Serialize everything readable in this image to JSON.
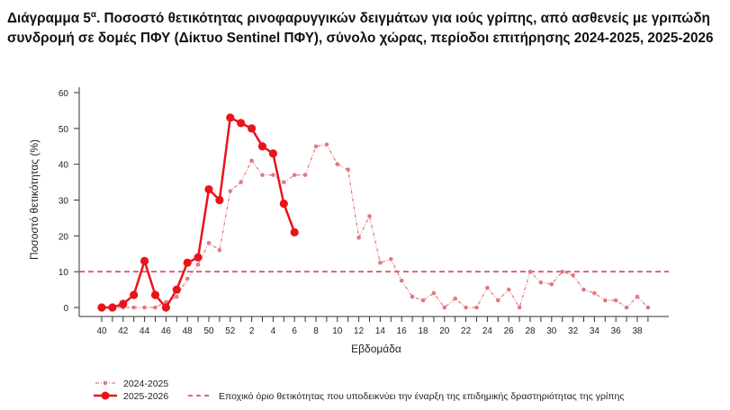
{
  "title": {
    "prefix": "Διάγραμμα 5",
    "sup": "α",
    "text": ". Ποσοστό θετικότητας ρινοφαρυγγικών δειγμάτων για ιούς γρίπης, από ασθενείς με γριπώδη συνδρομή σε δομές ΠΦΥ (Δίκτυο Sentinel ΠΦΥ), σύνολο χώρας, περίοδοι επιτήρησης 2024-2025, 2025-2026"
  },
  "chart_data": {
    "type": "line",
    "xlabel": "Εβδομάδα",
    "ylabel": "Ποσοστό θετικότητας (%)",
    "ylim": [
      0,
      60
    ],
    "yticks": [
      0,
      10,
      20,
      30,
      40,
      50,
      60
    ],
    "weeks": [
      40,
      41,
      42,
      43,
      44,
      45,
      46,
      47,
      48,
      49,
      50,
      51,
      52,
      1,
      2,
      3,
      4,
      5,
      6,
      7,
      8,
      9,
      10,
      11,
      12,
      13,
      14,
      15,
      16,
      17,
      18,
      19,
      20,
      21,
      22,
      23,
      24,
      25,
      26,
      27,
      28,
      29,
      30,
      31,
      32,
      33,
      34,
      35,
      36,
      37,
      38,
      39
    ],
    "series": [
      {
        "name": "2024-2025",
        "color": "#e07a80",
        "style": "dash-dot",
        "values": [
          0,
          0,
          0,
          0,
          0,
          0,
          1.5,
          3,
          8,
          12,
          18,
          16,
          32.5,
          35,
          41,
          37,
          37,
          35,
          37,
          37,
          45,
          45.5,
          40,
          38.5,
          19.5,
          25.5,
          12.5,
          13.5,
          7.5,
          3,
          2,
          4,
          0,
          2.5,
          0,
          0,
          5.5,
          2,
          5,
          0,
          10,
          7,
          6.5,
          10,
          9,
          5,
          4,
          2,
          2,
          0,
          3,
          0
        ]
      },
      {
        "name": "2025-2026",
        "color": "#e8141c",
        "style": "solid",
        "values": [
          0,
          0,
          1,
          3.5,
          13,
          3.5,
          0,
          5,
          12.5,
          14,
          33,
          30,
          53,
          51.5,
          50,
          45,
          43,
          29,
          21
        ]
      }
    ],
    "threshold": {
      "value": 10,
      "label": "Εποχικό όριο θετικότητας που υποδεικνύει την έναρξη της επιδημικής δραστηριότητας της γρίπης",
      "color": "#d9363e"
    },
    "legend_position": "bottom-left"
  }
}
